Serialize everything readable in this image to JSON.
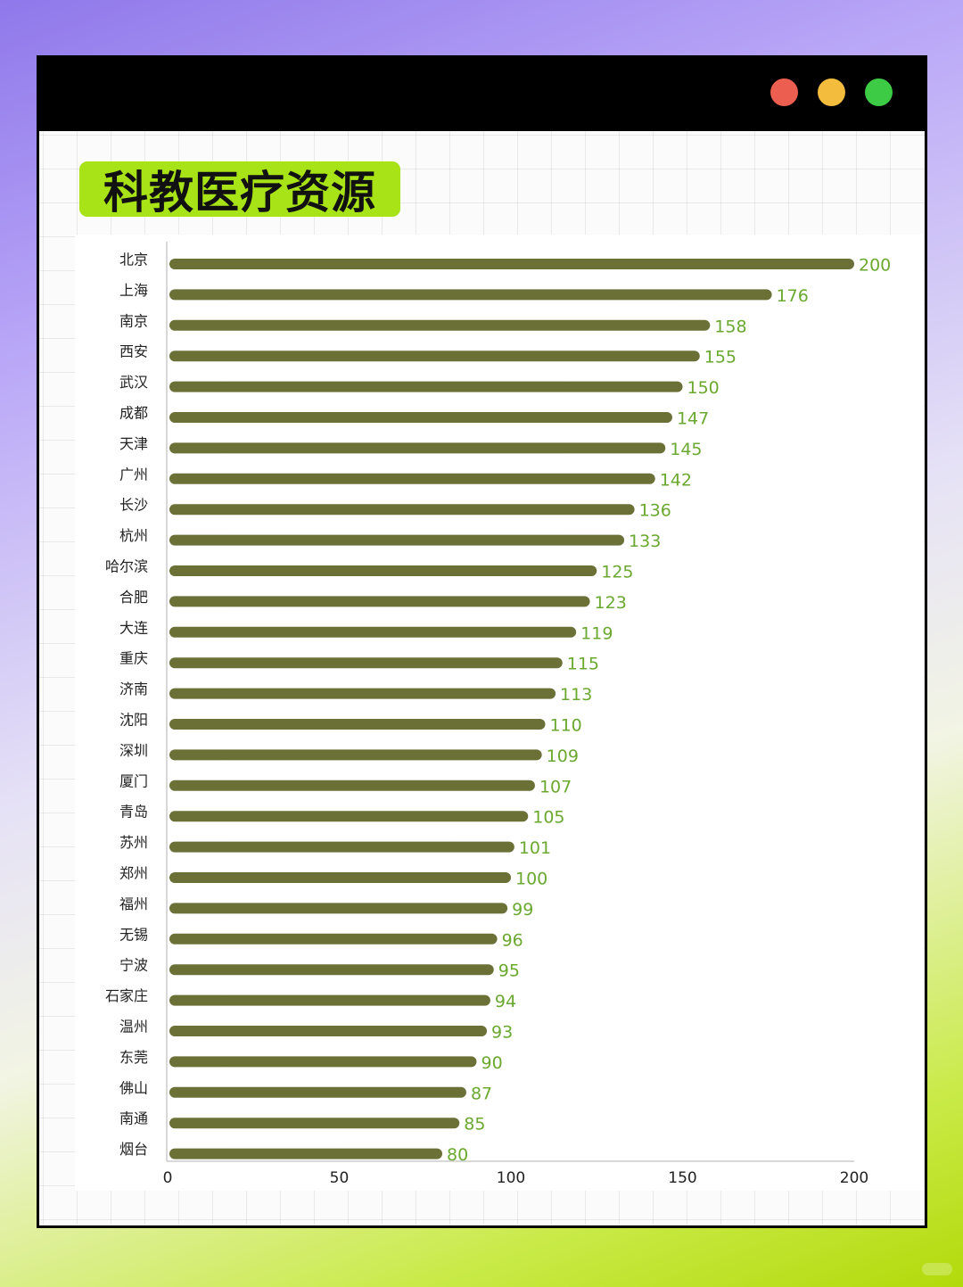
{
  "window": {
    "title_dots": [
      "red",
      "yellow",
      "green"
    ],
    "colors": {
      "titlebar": "#000000",
      "dot_red": "#ec5e4f",
      "dot_yellow": "#f3bc3d",
      "dot_green": "#3dcb45"
    }
  },
  "title_badge": {
    "text": "科教医疗资源",
    "color": "#a7e317"
  },
  "chart_data": {
    "type": "bar",
    "orientation": "horizontal",
    "title": "科教医疗资源",
    "xlabel": "",
    "ylabel": "",
    "categories": [
      "北京",
      "上海",
      "南京",
      "西安",
      "武汉",
      "成都",
      "天津",
      "广州",
      "长沙",
      "杭州",
      "哈尔滨",
      "合肥",
      "大连",
      "重庆",
      "济南",
      "沈阳",
      "深圳",
      "厦门",
      "青岛",
      "苏州",
      "郑州",
      "福州",
      "无锡",
      "宁波",
      "石家庄",
      "温州",
      "东莞",
      "佛山",
      "南通",
      "烟台"
    ],
    "values": [
      200,
      176,
      158,
      155,
      150,
      147,
      145,
      142,
      136,
      133,
      125,
      123,
      119,
      115,
      113,
      110,
      109,
      107,
      105,
      101,
      100,
      99,
      96,
      95,
      94,
      93,
      90,
      87,
      85,
      80
    ],
    "xlim": [
      0,
      200
    ],
    "xticks": [
      "0",
      "50",
      "100",
      "150",
      "200"
    ],
    "grid": false,
    "legend": "none",
    "colors": {
      "bar": "#6b7036",
      "value_label": "#6aa830",
      "axis": "#cccccc",
      "tick_label": "#222222"
    }
  }
}
